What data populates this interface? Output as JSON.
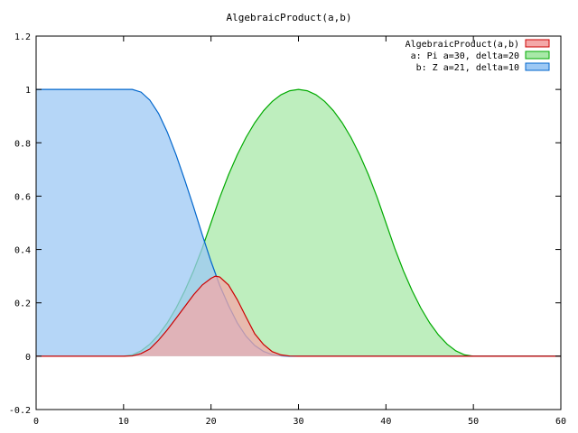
{
  "chart_data": {
    "type": "area",
    "title": "AlgebraicProduct(a,b)",
    "xlabel": "",
    "ylabel": "",
    "xlim": [
      0,
      60
    ],
    "ylim": [
      -0.2,
      1.2
    ],
    "x_ticks": [
      "0",
      "10",
      "20",
      "30",
      "40",
      "50",
      "60"
    ],
    "y_ticks": [
      "-0.2",
      "0",
      "0.2",
      "0.4",
      "0.6",
      "0.8",
      "1",
      "1.2"
    ],
    "grid": false,
    "legend_position": "top-right",
    "series": [
      {
        "name": "AlgebraicProduct(a,b)",
        "fill": "#f4a8a8",
        "stroke": "#cc0000",
        "x": [
          0,
          10,
          11,
          12,
          13,
          14,
          15,
          16,
          17,
          18,
          19,
          20,
          20.5,
          21,
          22,
          23,
          24,
          25,
          26,
          27,
          28,
          29,
          30,
          31,
          32,
          60
        ],
        "y": [
          0,
          0,
          0.001,
          0.01,
          0.027,
          0.06,
          0.099,
          0.142,
          0.186,
          0.23,
          0.267,
          0.292,
          0.3,
          0.297,
          0.267,
          0.212,
          0.147,
          0.084,
          0.044,
          0.017,
          0.005,
          0.0006,
          0,
          0,
          0,
          0
        ]
      },
      {
        "name": "a: Pi  a=30, delta=20",
        "fill": "#a8e8a8",
        "stroke": "#00aa00",
        "x": [
          0,
          10,
          11,
          12,
          13,
          14,
          15,
          16,
          17,
          18,
          19,
          20,
          21,
          22,
          23,
          24,
          25,
          26,
          27,
          28,
          29,
          30,
          31,
          32,
          33,
          34,
          35,
          36,
          37,
          38,
          39,
          40,
          41,
          42,
          43,
          44,
          45,
          46,
          47,
          48,
          49,
          50,
          60
        ],
        "y": [
          0,
          0,
          0.005,
          0.02,
          0.045,
          0.08,
          0.125,
          0.18,
          0.245,
          0.32,
          0.405,
          0.5,
          0.595,
          0.68,
          0.755,
          0.82,
          0.875,
          0.92,
          0.955,
          0.98,
          0.995,
          1,
          0.995,
          0.98,
          0.955,
          0.92,
          0.875,
          0.82,
          0.755,
          0.68,
          0.595,
          0.5,
          0.405,
          0.32,
          0.245,
          0.18,
          0.125,
          0.08,
          0.045,
          0.02,
          0.005,
          0,
          0
        ]
      },
      {
        "name": "b: Z  a=21, delta=10",
        "fill": "#9cc8f4",
        "stroke": "#0066cc",
        "x": [
          0,
          11,
          12,
          13,
          14,
          15,
          16,
          17,
          18,
          19,
          20,
          21,
          22,
          23,
          24,
          25,
          26,
          27,
          28,
          29,
          30,
          31,
          60
        ],
        "y": [
          1,
          1,
          0.99,
          0.96,
          0.91,
          0.84,
          0.755,
          0.66,
          0.56,
          0.455,
          0.355,
          0.265,
          0.19,
          0.125,
          0.075,
          0.04,
          0.018,
          0.006,
          0.001,
          0,
          0,
          0,
          0
        ]
      }
    ]
  }
}
